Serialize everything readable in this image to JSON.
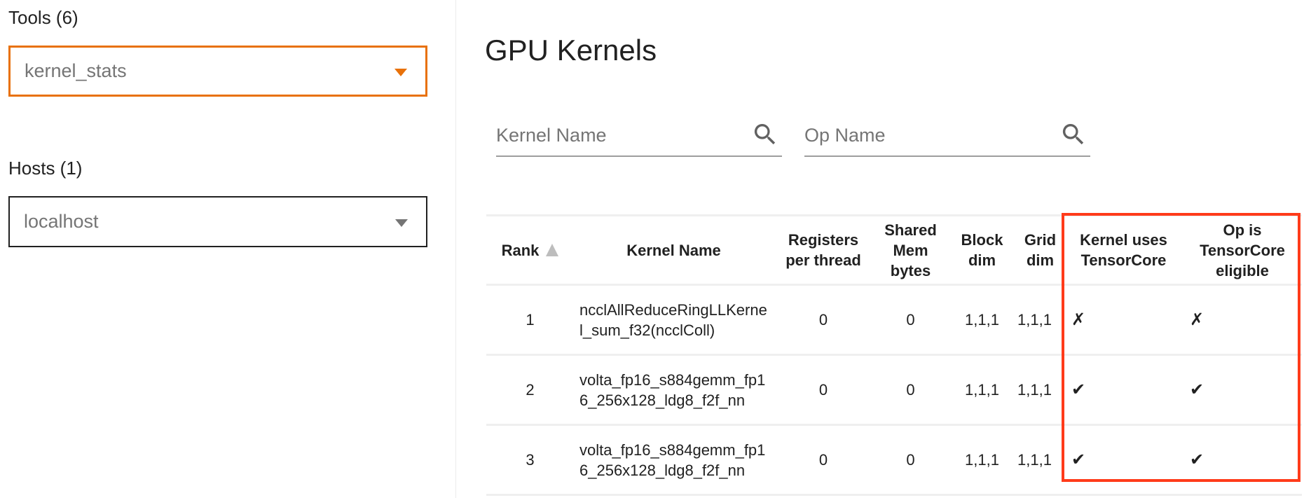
{
  "sidebar": {
    "tools_label": "Tools (6)",
    "tools_selected": "kernel_stats",
    "hosts_label": "Hosts (1)",
    "hosts_selected": "localhost"
  },
  "main": {
    "title": "GPU Kernels",
    "kernel_search_placeholder": "Kernel Name",
    "op_search_placeholder": "Op Name",
    "columns": [
      "Rank",
      "Kernel Name",
      "Registers per thread",
      "Shared Mem bytes",
      "Block dim",
      "Grid dim",
      "Kernel uses TensorCore",
      "Op is TensorCore eligible"
    ],
    "sort": {
      "column": "Rank",
      "direction": "ascending"
    },
    "rows": [
      [
        "1",
        "ncclAllReduceRingLLKernel_sum_f32(ncclColl)",
        "0",
        "0",
        "1,1,1",
        "1,1,1",
        "✗",
        "✗"
      ],
      [
        "2",
        "volta_fp16_s884gemm_fp16_256x128_ldg8_f2f_nn",
        "0",
        "0",
        "1,1,1",
        "1,1,1",
        "✔",
        "✔"
      ],
      [
        "3",
        "volta_fp16_s884gemm_fp16_256x128_ldg8_f2f_nn",
        "0",
        "0",
        "1,1,1",
        "1,1,1",
        "✔",
        "✔"
      ]
    ]
  },
  "colors": {
    "accent": "#e8710a",
    "highlight": "#ff3b1a"
  }
}
